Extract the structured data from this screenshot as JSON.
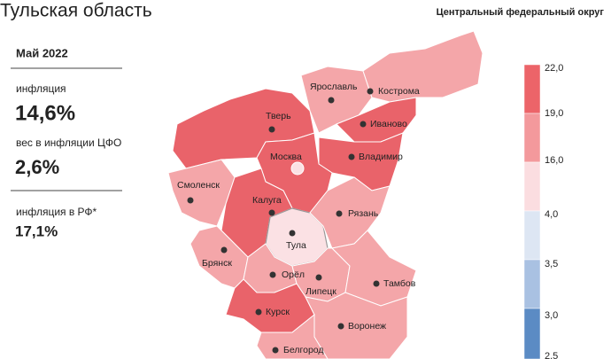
{
  "header": {
    "title": "Тульская область",
    "subtitle": "Центральный федеральный округ"
  },
  "panel": {
    "period": "Май 2022",
    "stats": [
      {
        "label": "инфляция",
        "value": "14,6%"
      },
      {
        "label": "вес в инфляции ЦФО",
        "value": "2,6%"
      },
      {
        "label": "инфляция в РФ*",
        "value": "17,1%"
      }
    ]
  },
  "regions": [
    {
      "name": "Тверь"
    },
    {
      "name": "Ярославль"
    },
    {
      "name": "Кострома"
    },
    {
      "name": "Иваново"
    },
    {
      "name": "Владимир"
    },
    {
      "name": "Москва"
    },
    {
      "name": "Смоленск"
    },
    {
      "name": "Калуга"
    },
    {
      "name": "Тула"
    },
    {
      "name": "Рязань"
    },
    {
      "name": "Брянск"
    },
    {
      "name": "Орёл"
    },
    {
      "name": "Липецк"
    },
    {
      "name": "Тамбов"
    },
    {
      "name": "Курск"
    },
    {
      "name": "Воронеж"
    },
    {
      "name": "Белгород"
    }
  ],
  "legend": {
    "ticks": [
      "22,0",
      "19,0",
      "16,0",
      "4,0",
      "3,5",
      "3,0",
      "2,5"
    ]
  }
}
